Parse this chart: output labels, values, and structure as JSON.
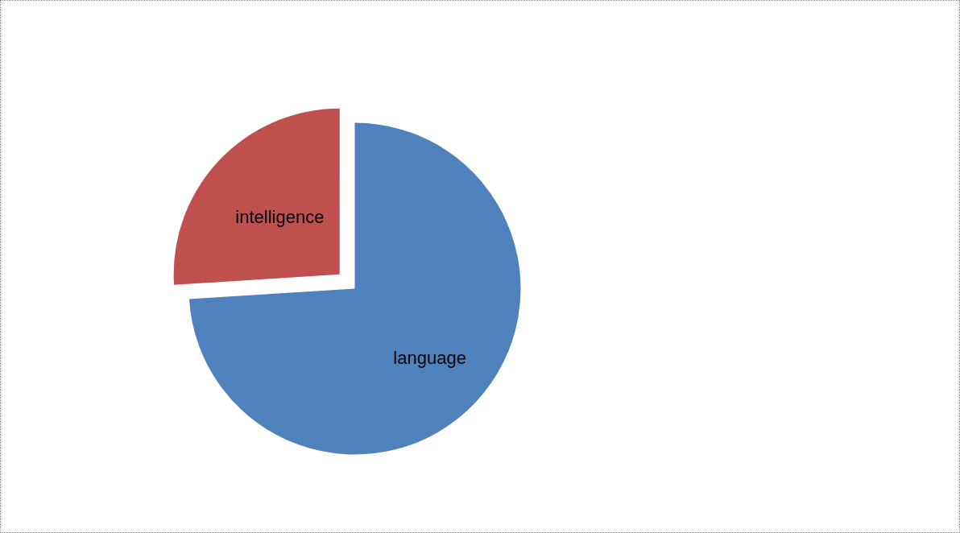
{
  "chart_data": {
    "type": "pie",
    "categories": [
      "language",
      "intelligence"
    ],
    "values": [
      74,
      26
    ],
    "colors": [
      "#4f81bd",
      "#c0504d"
    ],
    "legend": false
  }
}
